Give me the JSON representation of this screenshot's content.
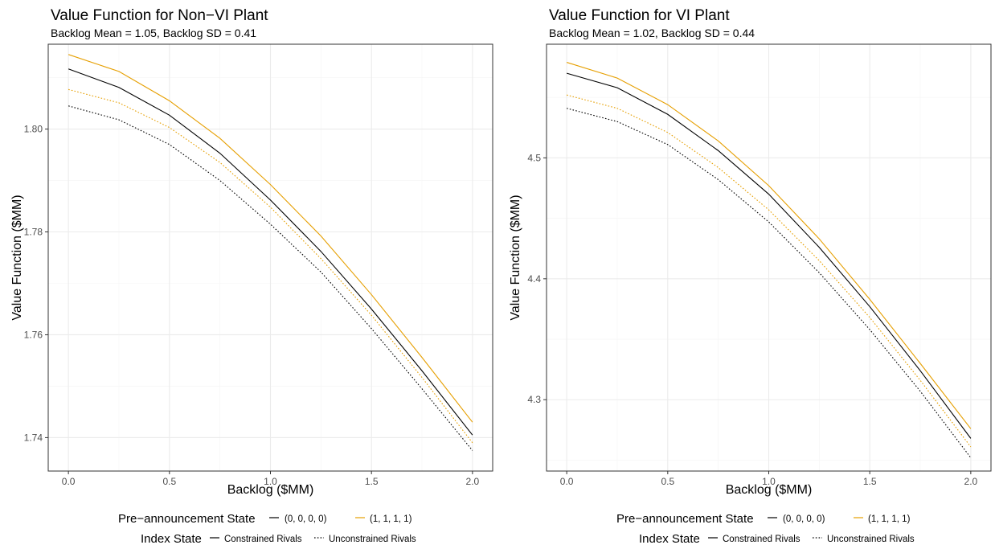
{
  "colors": {
    "black_series": "#000000",
    "gold_series": "#E69F00",
    "grid_major": "#EBEBEB",
    "grid_minor": "#F5F5F5",
    "panel_border": "#333333",
    "tick_text": "#4D4D4D"
  },
  "chart_data": [
    {
      "type": "line",
      "title": "Value Function for Non−VI Plant",
      "subtitle": "Backlog Mean = 1.05, Backlog SD = 0.41",
      "xlabel": "Backlog ($MM)",
      "ylabel": "Value Function ($MM)",
      "xlim": [
        -0.1,
        2.1
      ],
      "ylim": [
        1.7335,
        1.8165
      ],
      "xticks": [
        0.0,
        0.5,
        1.0,
        1.5,
        2.0
      ],
      "xtick_labels": [
        "0.0",
        "0.5",
        "1.0",
        "1.5",
        "2.0"
      ],
      "yticks": [
        1.74,
        1.76,
        1.78,
        1.8
      ],
      "ytick_labels": [
        "1.74",
        "1.76",
        "1.78",
        "1.80"
      ],
      "grid": true,
      "x": [
        0.0,
        0.25,
        0.5,
        0.75,
        1.0,
        1.25,
        1.5,
        1.75,
        2.0
      ],
      "series": [
        {
          "pre_announcement": "(1, 1, 1, 1)",
          "index_state": "Constrained Rivals",
          "color": "#E69F00",
          "linetype": "solid",
          "values": [
            1.8145,
            1.8112,
            1.8055,
            1.7982,
            1.7892,
            1.7792,
            1.7678,
            1.7556,
            1.743
          ]
        },
        {
          "pre_announcement": "(0, 0, 0, 0)",
          "index_state": "Constrained Rivals",
          "color": "#000000",
          "linetype": "solid",
          "values": [
            1.8117,
            1.8081,
            1.8027,
            1.7953,
            1.7862,
            1.7762,
            1.765,
            1.753,
            1.7405
          ]
        },
        {
          "pre_announcement": "(1, 1, 1, 1)",
          "index_state": "Unconstrained Rivals",
          "color": "#E69F00",
          "linetype": "dotted",
          "values": [
            1.8077,
            1.8051,
            1.8003,
            1.7935,
            1.7848,
            1.7748,
            1.7638,
            1.7517,
            1.739
          ]
        },
        {
          "pre_announcement": "(0, 0, 0, 0)",
          "index_state": "Unconstrained Rivals",
          "color": "#000000",
          "linetype": "dotted",
          "values": [
            1.8045,
            1.8018,
            1.797,
            1.79,
            1.7815,
            1.7722,
            1.7612,
            1.7495,
            1.7375
          ]
        }
      ]
    },
    {
      "type": "line",
      "title": "Value Function for VI Plant",
      "subtitle": "Backlog Mean = 1.02, Backlog SD = 0.44",
      "xlabel": "Backlog ($MM)",
      "ylabel": "Value Function ($MM)",
      "xlim": [
        -0.1,
        2.1
      ],
      "ylim": [
        4.241,
        4.594
      ],
      "xticks": [
        0.0,
        0.5,
        1.0,
        1.5,
        2.0
      ],
      "xtick_labels": [
        "0.0",
        "0.5",
        "1.0",
        "1.5",
        "2.0"
      ],
      "yticks": [
        4.3,
        4.4,
        4.5
      ],
      "ytick_labels": [
        "4.3",
        "4.4",
        "4.5"
      ],
      "grid": true,
      "x": [
        0.0,
        0.25,
        0.5,
        0.75,
        1.0,
        1.25,
        1.5,
        1.75,
        2.0
      ],
      "series": [
        {
          "pre_announcement": "(1, 1, 1, 1)",
          "index_state": "Constrained Rivals",
          "color": "#E69F00",
          "linetype": "solid",
          "values": [
            4.579,
            4.566,
            4.544,
            4.514,
            4.477,
            4.433,
            4.383,
            4.33,
            4.276
          ]
        },
        {
          "pre_announcement": "(0, 0, 0, 0)",
          "index_state": "Constrained Rivals",
          "color": "#000000",
          "linetype": "solid",
          "values": [
            4.57,
            4.558,
            4.536,
            4.506,
            4.47,
            4.426,
            4.377,
            4.324,
            4.268
          ]
        },
        {
          "pre_announcement": "(1, 1, 1, 1)",
          "index_state": "Unconstrained Rivals",
          "color": "#E69F00",
          "linetype": "dotted",
          "values": [
            4.552,
            4.541,
            4.521,
            4.492,
            4.457,
            4.415,
            4.368,
            4.316,
            4.261
          ]
        },
        {
          "pre_announcement": "(0, 0, 0, 0)",
          "index_state": "Unconstrained Rivals",
          "color": "#000000",
          "linetype": "dotted",
          "values": [
            4.541,
            4.53,
            4.511,
            4.482,
            4.447,
            4.405,
            4.358,
            4.307,
            4.252
          ]
        }
      ]
    }
  ],
  "legend": {
    "pre_announcement_title": "Pre−announcement State",
    "pre_announcement_items": [
      {
        "label": "(0, 0, 0, 0)",
        "color": "#000000"
      },
      {
        "label": "(1, 1, 1, 1)",
        "color": "#E69F00"
      }
    ],
    "index_state_title": "Index State",
    "index_state_items": [
      {
        "label": "Constrained Rivals",
        "linetype": "solid"
      },
      {
        "label": "Unconstrained Rivals",
        "linetype": "dotted"
      }
    ]
  }
}
